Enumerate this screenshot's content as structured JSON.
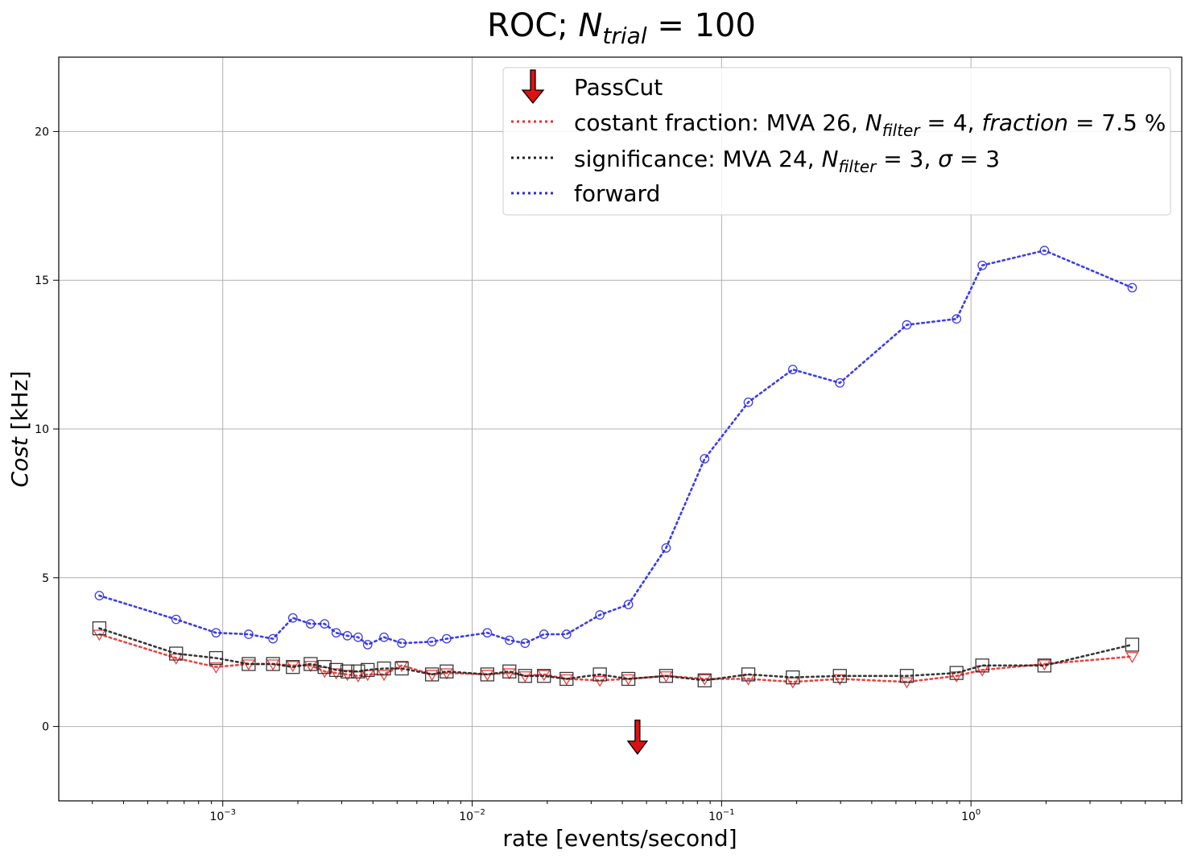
{
  "chart_data": {
    "type": "line",
    "title": {
      "prefix": "ROC; ",
      "symbol": "N",
      "subscript": "trial",
      "suffix": " = 100"
    },
    "xlabel": "rate [events/second]",
    "ylabel": {
      "italic": "Cost",
      "rest": " [kHz]"
    },
    "xscale": "log",
    "xlim": [
      0.00022,
      7.0
    ],
    "ylim": [
      -2.5,
      22.5
    ],
    "grid": true,
    "legend_position": "top-right",
    "x_ticks": [
      {
        "value": 0.001,
        "base": "10",
        "exp": "−3"
      },
      {
        "value": 0.01,
        "base": "10",
        "exp": "−2"
      },
      {
        "value": 0.1,
        "base": "10",
        "exp": "−1"
      },
      {
        "value": 1,
        "base": "10",
        "exp": "0"
      }
    ],
    "y_ticks": [
      "0",
      "5",
      "10",
      "15",
      "20"
    ],
    "legend": {
      "passcut": "PassCut",
      "cf": {
        "a": "costant fraction: MVA 26, ",
        "b": "N",
        "bsub": "filter",
        "c": " = 4, ",
        "d": "fraction",
        "e": " = 7.5 %"
      },
      "sig": {
        "a": "significance: MVA 24, ",
        "b": "N",
        "bsub": "filter",
        "c": " = 3, ",
        "d": "σ",
        "e": " = 3"
      },
      "fwd": "forward"
    },
    "colors": {
      "cf": "#e8302e",
      "sig": "#222222",
      "fwd": "#2828e6",
      "passcut": "#dd1111"
    },
    "passcut": {
      "x": 0.046,
      "y": -0.6
    },
    "series": [
      {
        "key": "fwd",
        "marker": "circle",
        "x": [
          0.00032,
          0.00065,
          0.00094,
          0.00127,
          0.00159,
          0.00191,
          0.00225,
          0.00256,
          0.00285,
          0.00316,
          0.00349,
          0.00381,
          0.00443,
          0.00522,
          0.0069,
          0.0079,
          0.0115,
          0.0141,
          0.0163,
          0.0194,
          0.0239,
          0.0325,
          0.0423,
          0.0599,
          0.0855,
          0.128,
          0.193,
          0.298,
          0.553,
          0.875,
          1.11,
          1.97,
          4.43
        ],
        "y": [
          4.4,
          3.6,
          3.15,
          3.1,
          2.95,
          3.65,
          3.45,
          3.45,
          3.15,
          3.05,
          3.0,
          2.75,
          3.0,
          2.8,
          2.85,
          2.95,
          3.15,
          2.9,
          2.8,
          3.1,
          3.1,
          3.75,
          4.1,
          6.0,
          9.0,
          10.9,
          12.0,
          11.55,
          13.5,
          13.7,
          15.5,
          16.0,
          14.75
        ]
      },
      {
        "key": "cf",
        "marker": "triangle-down",
        "x": [
          0.00032,
          0.00065,
          0.00094,
          0.00127,
          0.00159,
          0.00191,
          0.00225,
          0.00256,
          0.00285,
          0.00316,
          0.00349,
          0.00381,
          0.00443,
          0.00522,
          0.0069,
          0.0079,
          0.0115,
          0.0141,
          0.0163,
          0.0194,
          0.0239,
          0.0325,
          0.0423,
          0.0599,
          0.0855,
          0.128,
          0.193,
          0.298,
          0.553,
          0.875,
          1.11,
          1.97,
          4.43
        ],
        "y": [
          3.1,
          2.3,
          2.0,
          2.1,
          2.1,
          2.05,
          2.05,
          1.85,
          1.8,
          1.75,
          1.7,
          1.75,
          1.75,
          2.05,
          1.75,
          1.8,
          1.75,
          1.8,
          1.7,
          1.75,
          1.6,
          1.55,
          1.6,
          1.7,
          1.6,
          1.6,
          1.5,
          1.6,
          1.5,
          1.7,
          1.9,
          2.1,
          2.35
        ]
      },
      {
        "key": "sig",
        "marker": "square",
        "x": [
          0.00032,
          0.00065,
          0.00094,
          0.00127,
          0.00159,
          0.00191,
          0.00225,
          0.00256,
          0.00285,
          0.00316,
          0.00349,
          0.00381,
          0.00443,
          0.00522,
          0.0069,
          0.0079,
          0.0115,
          0.0141,
          0.0163,
          0.0194,
          0.0239,
          0.0325,
          0.0423,
          0.0599,
          0.0855,
          0.128,
          0.193,
          0.298,
          0.553,
          0.875,
          1.11,
          1.97,
          4.43
        ],
        "y": [
          3.3,
          2.45,
          2.3,
          2.1,
          2.1,
          2.0,
          2.1,
          2.0,
          1.9,
          1.85,
          1.85,
          1.9,
          1.95,
          1.95,
          1.75,
          1.85,
          1.75,
          1.85,
          1.7,
          1.7,
          1.6,
          1.75,
          1.6,
          1.7,
          1.55,
          1.75,
          1.65,
          1.7,
          1.7,
          1.8,
          2.05,
          2.05,
          2.75
        ]
      }
    ]
  }
}
